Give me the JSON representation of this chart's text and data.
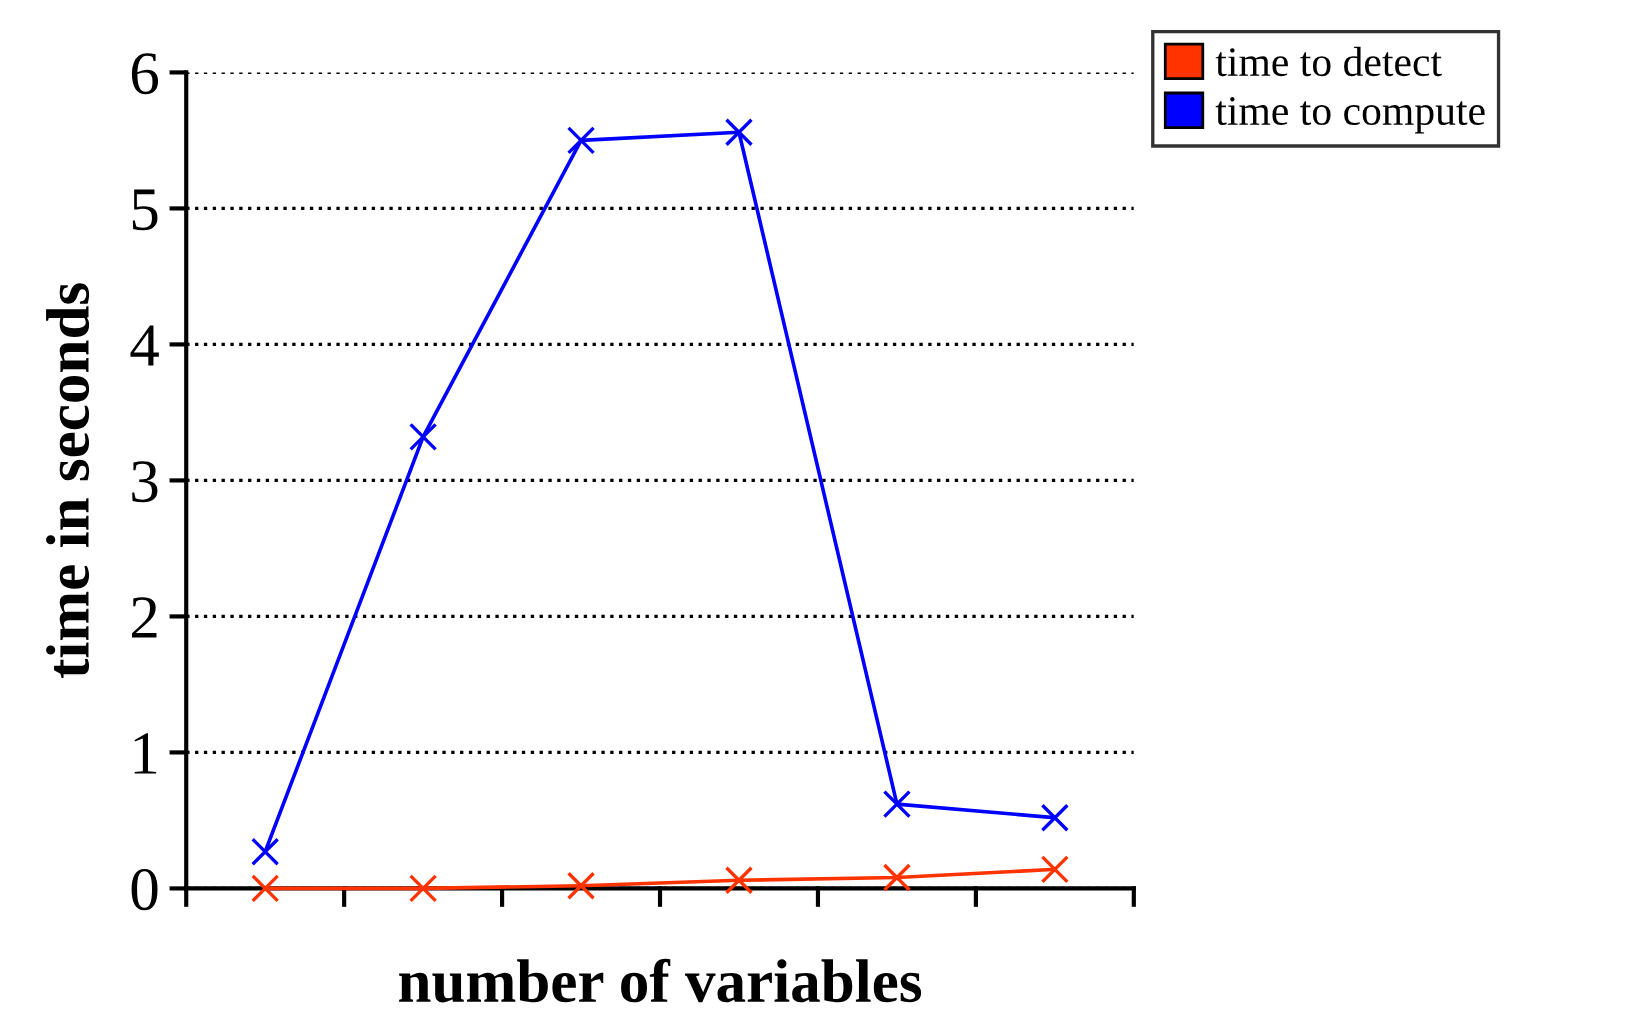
{
  "chart_data": {
    "type": "line",
    "xlabel": "number of variables",
    "ylabel": "time in seconds",
    "categories": [
      null,
      null,
      null,
      null,
      null,
      null
    ],
    "series": [
      {
        "name": "time to detect",
        "color": "#ff3300",
        "values": [
          0,
          0,
          0.02,
          0.06,
          0.08,
          0.14
        ]
      },
      {
        "name": "time to compute",
        "color": "#0000ff",
        "values": [
          0.27,
          3.32,
          5.5,
          5.56,
          0.62,
          0.52
        ]
      }
    ],
    "ylim": [
      0,
      6
    ],
    "yticks": [
      0,
      1,
      2,
      3,
      4,
      5,
      6
    ],
    "grid": "y",
    "legend": "top right",
    "marker": "cross",
    "line_style": "solid"
  }
}
